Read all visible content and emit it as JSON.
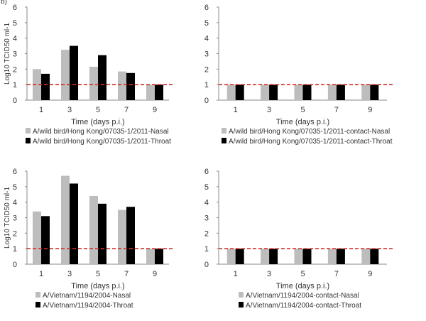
{
  "panel_label": "b)",
  "colors": {
    "nasal": "#bdbdbd",
    "throat": "#000000",
    "threshold": "#d12c2c"
  },
  "chart_data": [
    {
      "type": "bar",
      "categories": [
        "1",
        "3",
        "5",
        "7",
        "9"
      ],
      "ylim": [
        0,
        6
      ],
      "yticks": [
        "0",
        "1",
        "2",
        "3",
        "4",
        "5",
        "6"
      ],
      "ylabel": "Log10 TCID50 ml-1",
      "xlabel": "Time (days p.i.)",
      "threshold": 1,
      "legend_position": "bottom",
      "series": [
        {
          "name": "A/wild bird/Hong Kong/07035-1/2011-Nasal",
          "values": [
            2.0,
            3.25,
            2.15,
            1.85,
            1.0
          ]
        },
        {
          "name": "A/wild bird/Hong Kong/07035-1/2011-Throat",
          "values": [
            1.7,
            3.5,
            2.9,
            1.75,
            1.0
          ]
        }
      ]
    },
    {
      "type": "bar",
      "categories": [
        "1",
        "3",
        "5",
        "7",
        "9"
      ],
      "ylim": [
        0,
        6
      ],
      "yticks": [
        "0",
        "1",
        "2",
        "3",
        "4",
        "5",
        "6"
      ],
      "ylabel": "",
      "xlabel": "Time (days p.i.)",
      "threshold": 1,
      "legend_position": "bottom",
      "series": [
        {
          "name": "A/wild bird/Hong Kong/07035-1/2011-contact-Nasal",
          "values": [
            1.0,
            1.0,
            1.0,
            1.0,
            1.0
          ]
        },
        {
          "name": "A/wild bird/Hong Kong/07035-1/2011-contact-Throat",
          "values": [
            1.0,
            1.0,
            1.0,
            1.0,
            1.0
          ]
        }
      ]
    },
    {
      "type": "bar",
      "categories": [
        "1",
        "3",
        "5",
        "7",
        "9"
      ],
      "ylim": [
        0,
        6
      ],
      "yticks": [
        "0",
        "1",
        "2",
        "3",
        "4",
        "5",
        "6"
      ],
      "ylabel": "Log10 TCID50 ml-1",
      "xlabel": "Time (days p.i.)",
      "threshold": 1,
      "legend_position": "bottom",
      "series": [
        {
          "name": "A/Vietnam/1194/2004-Nasal",
          "values": [
            3.4,
            5.7,
            4.4,
            3.5,
            1.0
          ]
        },
        {
          "name": "A/Vietnam/1194/2004-Throat",
          "values": [
            3.1,
            5.2,
            3.9,
            3.7,
            1.0
          ]
        }
      ]
    },
    {
      "type": "bar",
      "categories": [
        "1",
        "3",
        "5",
        "7",
        "9"
      ],
      "ylim": [
        0,
        6
      ],
      "yticks": [
        "0",
        "1",
        "2",
        "3",
        "4",
        "5",
        "6"
      ],
      "ylabel": "",
      "xlabel": "Time (days p.i.)",
      "threshold": 1,
      "legend_position": "bottom",
      "series": [
        {
          "name": "A/Vietnam/1194/2004-contact-Nasal",
          "values": [
            1.0,
            1.0,
            1.0,
            1.0,
            1.0
          ]
        },
        {
          "name": "A/Vietnam/1194/2004-contact-Throat",
          "values": [
            1.0,
            1.0,
            1.0,
            1.0,
            1.0
          ]
        }
      ]
    }
  ]
}
